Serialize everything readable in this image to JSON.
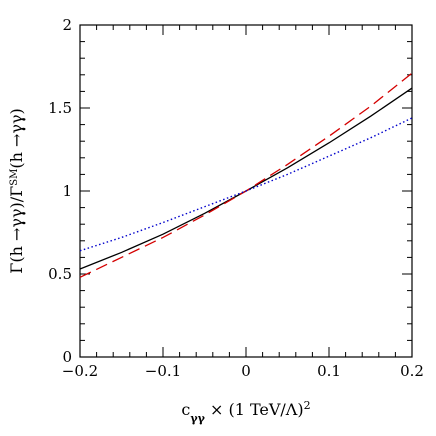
{
  "chart_data": {
    "type": "line",
    "title": "",
    "xlabel": "cγγ × (1 TeV/Λ)²",
    "ylabel": "Γ(h →γγ)/ΓSM(h →γγ)",
    "xlim": [
      -0.2,
      0.2
    ],
    "ylim": [
      0,
      2
    ],
    "x_ticks": [
      -0.2,
      -0.1,
      0,
      0.1,
      0.2
    ],
    "x_tick_labels": [
      "−0.2",
      "−0.1",
      "0",
      "0.1",
      "0.2"
    ],
    "y_ticks": [
      0,
      0.5,
      1,
      1.5,
      2
    ],
    "y_tick_labels": [
      "0",
      "0.5",
      "1",
      "1.5",
      "2"
    ],
    "grid": false,
    "legend": "none",
    "series": [
      {
        "style": "solid",
        "color": "#000000",
        "x": [
          -0.2,
          -0.15,
          -0.1,
          -0.05,
          0,
          0.05,
          0.1,
          0.15,
          0.2
        ],
        "y": [
          0.53,
          0.63,
          0.74,
          0.865,
          1.0,
          1.14,
          1.29,
          1.45,
          1.62
        ]
      },
      {
        "style": "dashed",
        "color": "#d40000",
        "x": [
          -0.2,
          -0.15,
          -0.1,
          -0.05,
          0,
          0.05,
          0.1,
          0.15,
          0.2
        ],
        "y": [
          0.48,
          0.6,
          0.72,
          0.855,
          1.0,
          1.16,
          1.33,
          1.51,
          1.71
        ]
      },
      {
        "style": "dotted",
        "color": "#0000cc",
        "x": [
          -0.2,
          -0.15,
          -0.1,
          -0.05,
          0,
          0.05,
          0.1,
          0.15,
          0.2
        ],
        "y": [
          0.64,
          0.72,
          0.81,
          0.905,
          1.0,
          1.1,
          1.21,
          1.32,
          1.44
        ]
      }
    ]
  }
}
